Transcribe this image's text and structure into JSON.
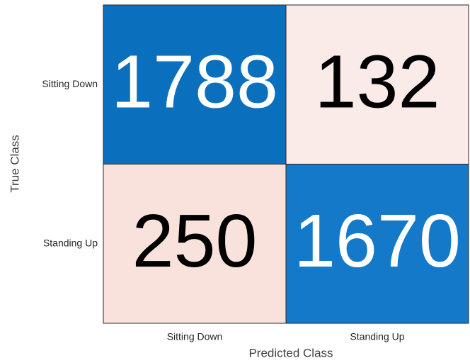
{
  "chart_data": {
    "type": "heatmap",
    "xlabel": "Predicted Class",
    "ylabel": "True Class",
    "x_categories": [
      "Sitting Down",
      "Standing Up"
    ],
    "y_categories": [
      "Sitting Down",
      "Standing Up"
    ],
    "values": [
      [
        1788,
        132
      ],
      [
        250,
        1670
      ]
    ],
    "colors": [
      [
        "#0a6fbd",
        "#fbebe8"
      ],
      [
        "#f9e2dc",
        "#1479c8"
      ]
    ]
  }
}
